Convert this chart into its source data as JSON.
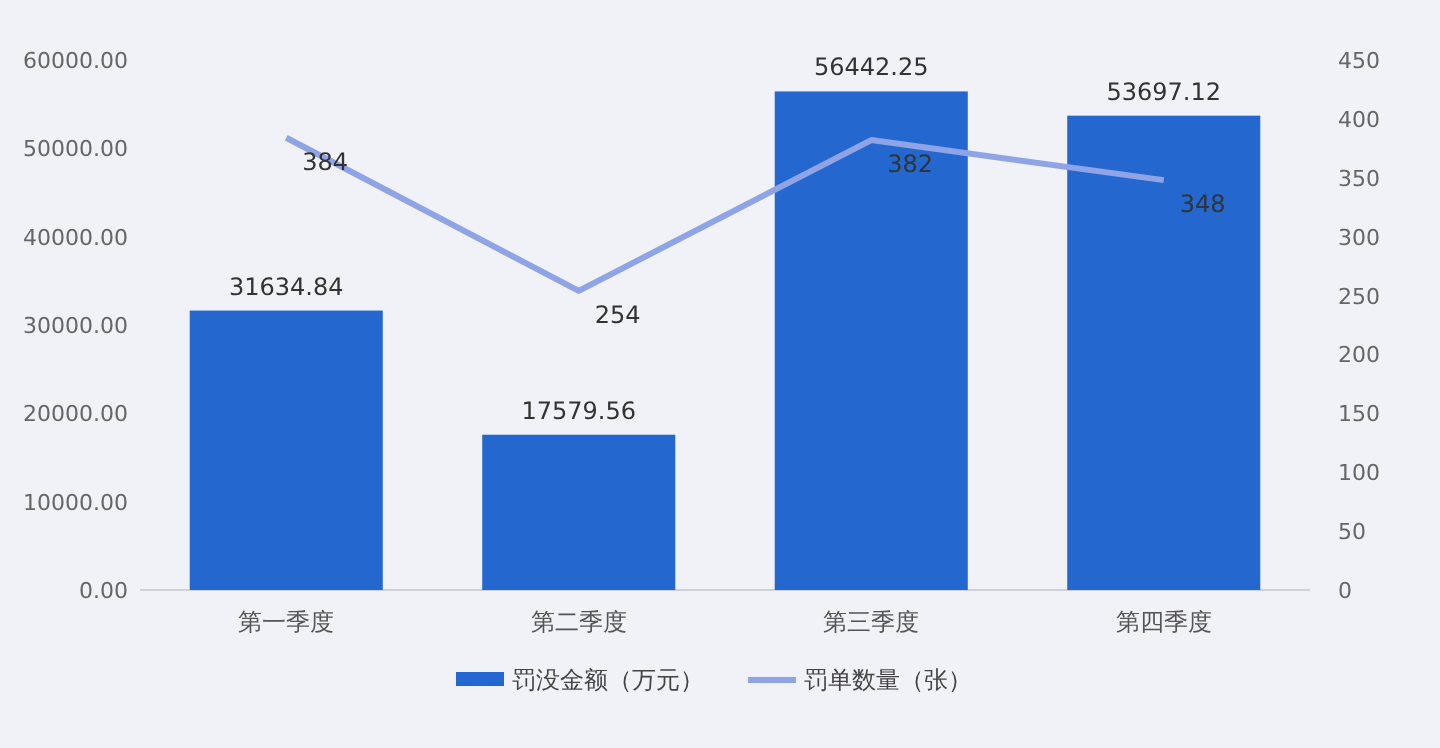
{
  "chart_data": {
    "type": "bar",
    "categories": [
      "第一季度",
      "第二季度",
      "第三季度",
      "第四季度"
    ],
    "series": [
      {
        "name": "罚没金额（万元）",
        "color": "#2468cf",
        "values": [
          31634.84,
          17579.56,
          56442.25,
          53697.12
        ]
      },
      {
        "name": "罚单数量（张）",
        "type": "line",
        "axis": "y2",
        "color": "#8ea4e6",
        "values": [
          384,
          254,
          382,
          348
        ]
      }
    ],
    "ylim": [
      0,
      60000
    ],
    "yticks": [
      {
        "value": 0,
        "label": "0.00"
      },
      {
        "value": 10000,
        "label": "10000.00"
      },
      {
        "value": 20000,
        "label": "20000.00"
      },
      {
        "value": 30000,
        "label": "30000.00"
      },
      {
        "value": 40000,
        "label": "40000.00"
      },
      {
        "value": 50000,
        "label": "50000.00"
      },
      {
        "value": 60000,
        "label": "60000.00"
      }
    ],
    "y2lim": [
      0,
      450
    ],
    "y2ticks": [
      0,
      50,
      100,
      150,
      200,
      250,
      300,
      350,
      400,
      450
    ],
    "data_labels": true,
    "legend": "bottom",
    "marker": "none"
  }
}
